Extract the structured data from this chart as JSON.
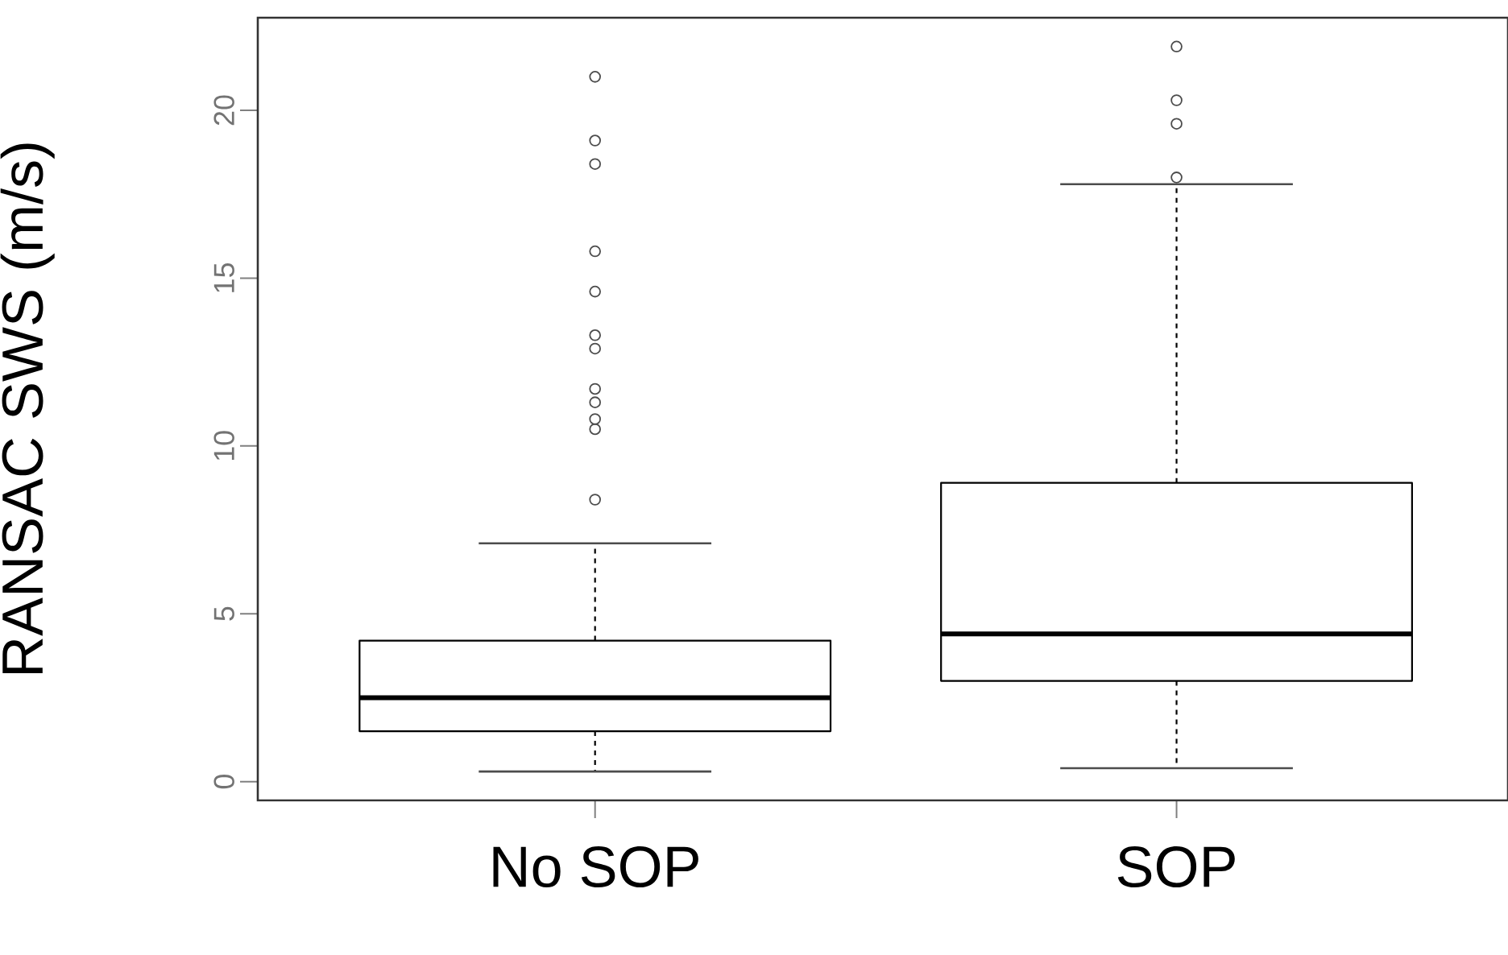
{
  "chart_data": {
    "type": "box",
    "ylabel": "RANSAC SWS (m/s)",
    "categories": [
      "No SOP",
      "SOP"
    ],
    "ylim": [
      -0.56,
      22.76
    ],
    "yticks": [
      0,
      5,
      10,
      15,
      20
    ],
    "color": "#000000",
    "boxes": [
      {
        "low": 0.3,
        "q1": 1.5,
        "median": 2.5,
        "q3": 4.2,
        "high": 7.1,
        "outliers": [
          21.0,
          19.1,
          18.4,
          15.8,
          14.6,
          13.3,
          12.9,
          11.7,
          11.3,
          10.8,
          10.5,
          8.4
        ]
      },
      {
        "low": 0.4,
        "q1": 3.0,
        "median": 4.4,
        "q3": 8.9,
        "high": 17.8,
        "outliers": [
          21.9,
          20.3,
          19.6,
          18.0
        ]
      }
    ]
  }
}
